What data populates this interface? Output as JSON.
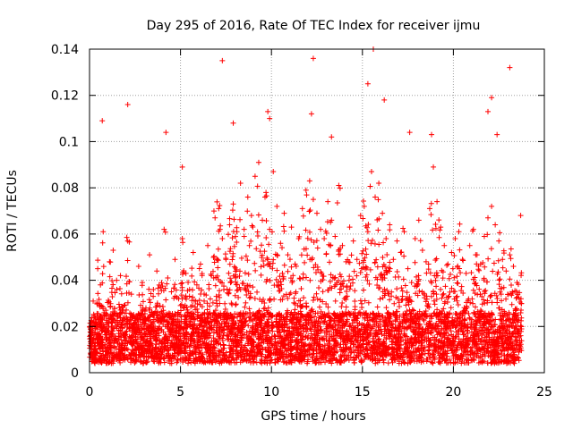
{
  "chart_data": {
    "type": "scatter",
    "title": "Day 295 of 2016, Rate Of TEC Index for receiver ijmu",
    "xlabel": "GPS time / hours",
    "ylabel": "ROTI / TECUs",
    "xlim": [
      0,
      25
    ],
    "ylim": [
      0,
      0.14
    ],
    "x_ticks": [
      0,
      5,
      10,
      15,
      20,
      25
    ],
    "y_ticks": [
      0,
      0.02,
      0.04,
      0.06,
      0.08,
      0.1,
      0.12,
      0.14
    ],
    "x_tick_labels": [
      "0",
      "5",
      "10",
      "15",
      "20",
      "25"
    ],
    "y_tick_labels": [
      "0",
      "0.02",
      "0.04",
      "0.06",
      "0.08",
      "0.1",
      "0.12",
      "0.14"
    ],
    "grid": true,
    "marker": "+",
    "color": "#ff0000",
    "series": [
      {
        "name": "ROTI",
        "x": [
          0.05,
          0.12,
          0.2,
          0.3,
          0.45,
          0.6,
          0.75,
          0.9,
          1.1,
          1.3,
          1.5,
          1.7,
          1.9,
          2.1,
          2.3,
          2.5,
          2.7,
          2.9,
          3.1,
          3.3,
          3.5,
          3.7,
          3.9,
          4.1,
          4.3,
          4.5,
          4.7,
          4.9,
          5.1,
          5.3,
          5.5,
          5.7,
          5.9,
          6.1,
          6.3,
          6.5,
          6.7,
          6.9,
          7.1,
          7.3,
          7.5,
          7.7,
          7.9,
          8.1,
          8.3,
          8.5,
          8.7,
          8.9,
          9.1,
          9.3,
          9.5,
          9.7,
          9.9,
          10.1,
          10.3,
          10.5,
          10.7,
          10.9,
          11.1,
          11.3,
          11.5,
          11.7,
          11.9,
          12.1,
          12.3,
          12.5,
          12.7,
          12.9,
          13.1,
          13.3,
          13.5,
          13.7,
          13.9,
          14.1,
          14.3,
          14.5,
          14.7,
          14.9,
          15.1,
          15.3,
          15.5,
          15.7,
          15.9,
          16.1,
          16.3,
          16.5,
          16.7,
          16.9,
          17.1,
          17.3,
          17.5,
          17.7,
          17.9,
          18.1,
          18.3,
          18.5,
          18.7,
          18.9,
          19.1,
          19.3,
          19.5,
          19.7,
          19.9,
          20.1,
          20.3,
          20.5,
          20.7,
          20.9,
          21.1,
          21.3,
          21.5,
          21.7,
          21.9,
          22.1,
          22.3,
          22.5,
          22.7,
          22.9,
          23.1,
          23.3,
          23.5,
          23.7,
          7.3,
          12.3,
          15.6,
          23.1,
          22.1,
          2.1,
          15.3,
          9.8,
          12.2,
          16.2,
          9.9,
          0.7,
          4.2,
          17.6,
          13.3,
          18.8,
          21.9,
          7.9,
          22.4,
          5.1
        ],
        "y": [
          0.016,
          0.022,
          0.031,
          0.019,
          0.045,
          0.038,
          0.061,
          0.027,
          0.048,
          0.053,
          0.036,
          0.042,
          0.029,
          0.057,
          0.034,
          0.021,
          0.046,
          0.039,
          0.028,
          0.051,
          0.033,
          0.044,
          0.037,
          0.062,
          0.041,
          0.035,
          0.049,
          0.032,
          0.058,
          0.043,
          0.036,
          0.052,
          0.038,
          0.047,
          0.031,
          0.055,
          0.042,
          0.067,
          0.071,
          0.058,
          0.049,
          0.064,
          0.073,
          0.061,
          0.082,
          0.059,
          0.076,
          0.068,
          0.085,
          0.091,
          0.066,
          0.078,
          0.062,
          0.087,
          0.072,
          0.056,
          0.069,
          0.051,
          0.063,
          0.047,
          0.058,
          0.071,
          0.079,
          0.083,
          0.075,
          0.069,
          0.062,
          0.058,
          0.074,
          0.066,
          0.059,
          0.081,
          0.055,
          0.048,
          0.063,
          0.057,
          0.049,
          0.068,
          0.072,
          0.061,
          0.087,
          0.076,
          0.082,
          0.069,
          0.058,
          0.064,
          0.049,
          0.057,
          0.052,
          0.061,
          0.045,
          0.039,
          0.058,
          0.066,
          0.053,
          0.048,
          0.071,
          0.089,
          0.074,
          0.063,
          0.055,
          0.047,
          0.052,
          0.058,
          0.061,
          0.049,
          0.043,
          0.055,
          0.062,
          0.051,
          0.047,
          0.059,
          0.067,
          0.072,
          0.064,
          0.057,
          0.049,
          0.044,
          0.051,
          0.046,
          0.039,
          0.068,
          0.135,
          0.136,
          0.14,
          0.132,
          0.119,
          0.116,
          0.125,
          0.113,
          0.112,
          0.118,
          0.11,
          0.109,
          0.104,
          0.104,
          0.102,
          0.103,
          0.113,
          0.108,
          0.103,
          0.089
        ]
      }
    ]
  }
}
